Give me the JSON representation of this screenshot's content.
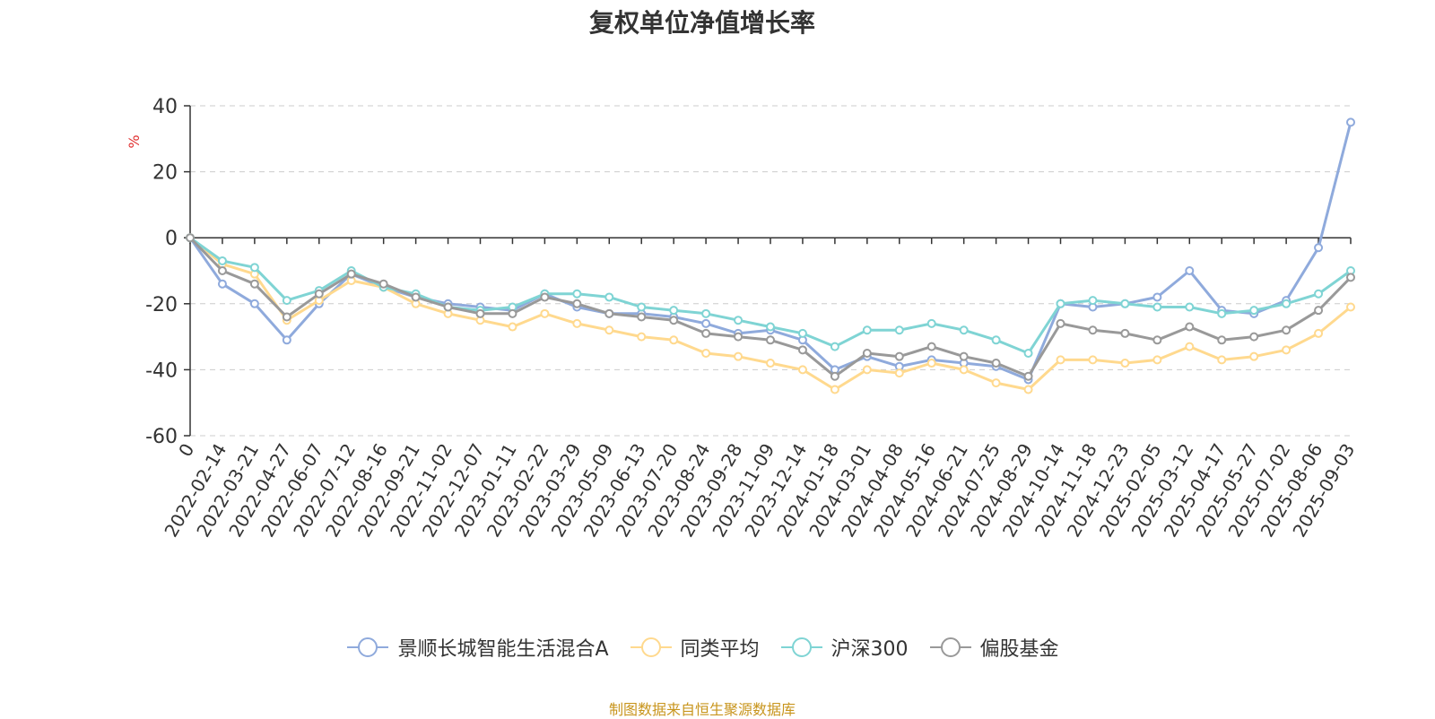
{
  "chart_data": {
    "type": "line",
    "title": "复权单位净值增长率",
    "ylabel": "%",
    "xlabel": "",
    "ylim": [
      -60,
      40
    ],
    "yticks": [
      40,
      20,
      0,
      -20,
      -40,
      -60
    ],
    "grid": true,
    "legend_position": "bottom",
    "categories": [
      "0",
      "2022-02-14",
      "2022-03-21",
      "2022-04-27",
      "2022-06-07",
      "2022-07-12",
      "2022-08-16",
      "2022-09-21",
      "2022-11-02",
      "2022-12-07",
      "2023-01-11",
      "2023-02-22",
      "2023-03-29",
      "2023-05-09",
      "2023-06-13",
      "2023-07-20",
      "2023-08-24",
      "2023-09-28",
      "2023-11-09",
      "2023-12-14",
      "2024-01-18",
      "2024-03-01",
      "2024-04-08",
      "2024-05-16",
      "2024-06-21",
      "2024-07-25",
      "2024-08-29",
      "2024-10-14",
      "2024-11-18",
      "2024-12-23",
      "2025-02-05",
      "2025-03-12",
      "2025-04-17",
      "2025-05-27",
      "2025-07-02",
      "2025-08-06",
      "2025-09-03"
    ],
    "series": [
      {
        "name": "景顺长城智能生活混合A",
        "color": "#8faadc",
        "values": [
          0,
          -14,
          -20,
          -31,
          -20,
          -11,
          -15,
          -18,
          -20,
          -21,
          -22,
          -17,
          -21,
          -23,
          -23,
          -24,
          -26,
          -29,
          -28,
          -31,
          -40,
          -36,
          -39,
          -37,
          -38,
          -39,
          -43,
          -20,
          -21,
          -20,
          -18,
          -10,
          -22,
          -23,
          -19,
          -3,
          35
        ]
      },
      {
        "name": "同类平均",
        "color": "#ffd98e",
        "values": [
          0,
          -8,
          -11,
          -25,
          -19,
          -13,
          -15,
          -20,
          -23,
          -25,
          -27,
          -23,
          -26,
          -28,
          -30,
          -31,
          -35,
          -36,
          -38,
          -40,
          -46,
          -40,
          -41,
          -38,
          -40,
          -44,
          -46,
          -37,
          -37,
          -38,
          -37,
          -33,
          -37,
          -36,
          -34,
          -29,
          -21
        ]
      },
      {
        "name": "沪深300",
        "color": "#7fd4d4",
        "values": [
          0,
          -7,
          -9,
          -19,
          -16,
          -10,
          -15,
          -17,
          -21,
          -22,
          -21,
          -17,
          -17,
          -18,
          -21,
          -22,
          -23,
          -25,
          -27,
          -29,
          -33,
          -28,
          -28,
          -26,
          -28,
          -31,
          -35,
          -20,
          -19,
          -20,
          -21,
          -21,
          -23,
          -22,
          -20,
          -17,
          -10
        ]
      },
      {
        "name": "偏股基金",
        "color": "#999999",
        "values": [
          0,
          -10,
          -14,
          -24,
          -17,
          -11,
          -14,
          -18,
          -21,
          -23,
          -23,
          -18,
          -20,
          -23,
          -24,
          -25,
          -29,
          -30,
          -31,
          -34,
          -42,
          -35,
          -36,
          -33,
          -36,
          -38,
          -42,
          -26,
          -28,
          -29,
          -31,
          -27,
          -31,
          -30,
          -28,
          -22,
          -12
        ]
      }
    ]
  },
  "source_note": "制图数据来自恒生聚源数据库"
}
